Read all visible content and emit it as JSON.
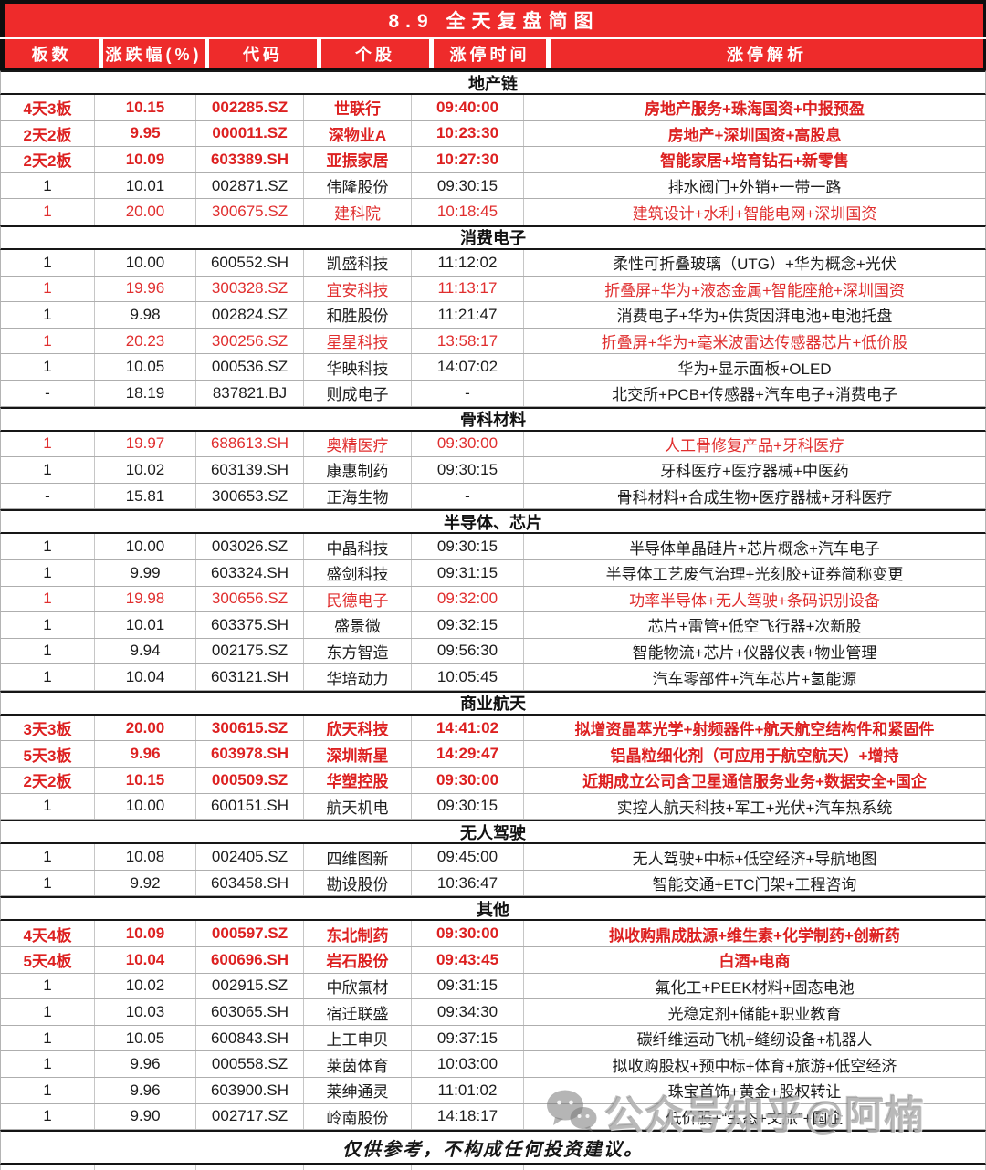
{
  "title": "8.9 全天复盘简图",
  "columns": [
    "板数",
    "涨跌幅(%)",
    "代码",
    "个股",
    "涨停时间",
    "涨停解析"
  ],
  "sections": [
    {
      "name": "地产链",
      "rows": [
        {
          "boards": "4天3板",
          "pct": "10.15",
          "code": "002285.SZ",
          "stock": "世联行",
          "time": "09:40:00",
          "analysis": "房地产服务+珠海国资+中报预盈",
          "style": "red-bold"
        },
        {
          "boards": "2天2板",
          "pct": "9.95",
          "code": "000011.SZ",
          "stock": "深物业A",
          "time": "10:23:30",
          "analysis": "房地产+深圳国资+高股息",
          "style": "red-bold"
        },
        {
          "boards": "2天2板",
          "pct": "10.09",
          "code": "603389.SH",
          "stock": "亚振家居",
          "time": "10:27:30",
          "analysis": "智能家居+培育钻石+新零售",
          "style": "red-bold"
        },
        {
          "boards": "1",
          "pct": "10.01",
          "code": "002871.SZ",
          "stock": "伟隆股份",
          "time": "09:30:15",
          "analysis": "排水阀门+外销+一带一路",
          "style": "black"
        },
        {
          "boards": "1",
          "pct": "20.00",
          "code": "300675.SZ",
          "stock": "建科院",
          "time": "10:18:45",
          "analysis": "建筑设计+水利+智能电网+深圳国资",
          "style": "red"
        }
      ]
    },
    {
      "name": "消费电子",
      "rows": [
        {
          "boards": "1",
          "pct": "10.00",
          "code": "600552.SH",
          "stock": "凯盛科技",
          "time": "11:12:02",
          "analysis": "柔性可折叠玻璃（UTG）+华为概念+光伏",
          "style": "black"
        },
        {
          "boards": "1",
          "pct": "19.96",
          "code": "300328.SZ",
          "stock": "宜安科技",
          "time": "11:13:17",
          "analysis": "折叠屏+华为+液态金属+智能座舱+深圳国资",
          "style": "red"
        },
        {
          "boards": "1",
          "pct": "9.98",
          "code": "002824.SZ",
          "stock": "和胜股份",
          "time": "11:21:47",
          "analysis": "消费电子+华为+供货因湃电池+电池托盘",
          "style": "black"
        },
        {
          "boards": "1",
          "pct": "20.23",
          "code": "300256.SZ",
          "stock": "星星科技",
          "time": "13:58:17",
          "analysis": "折叠屏+华为+毫米波雷达传感器芯片+低价股",
          "style": "red"
        },
        {
          "boards": "1",
          "pct": "10.05",
          "code": "000536.SZ",
          "stock": "华映科技",
          "time": "14:07:02",
          "analysis": "华为+显示面板+OLED",
          "style": "black"
        },
        {
          "boards": "-",
          "pct": "18.19",
          "code": "837821.BJ",
          "stock": "则成电子",
          "time": "-",
          "analysis": "北交所+PCB+传感器+汽车电子+消费电子",
          "style": "black"
        }
      ]
    },
    {
      "name": "骨科材料",
      "rows": [
        {
          "boards": "1",
          "pct": "19.97",
          "code": "688613.SH",
          "stock": "奥精医疗",
          "time": "09:30:00",
          "analysis": "人工骨修复产品+牙科医疗",
          "style": "red"
        },
        {
          "boards": "1",
          "pct": "10.02",
          "code": "603139.SH",
          "stock": "康惠制药",
          "time": "09:30:15",
          "analysis": "牙科医疗+医疗器械+中医药",
          "style": "black"
        },
        {
          "boards": "-",
          "pct": "15.81",
          "code": "300653.SZ",
          "stock": "正海生物",
          "time": "-",
          "analysis": "骨科材料+合成生物+医疗器械+牙科医疗",
          "style": "black"
        }
      ]
    },
    {
      "name": "半导体、芯片",
      "rows": [
        {
          "boards": "1",
          "pct": "10.00",
          "code": "003026.SZ",
          "stock": "中晶科技",
          "time": "09:30:15",
          "analysis": "半导体单晶硅片+芯片概念+汽车电子",
          "style": "black"
        },
        {
          "boards": "1",
          "pct": "9.99",
          "code": "603324.SH",
          "stock": "盛剑科技",
          "time": "09:31:15",
          "analysis": "半导体工艺废气治理+光刻胶+证券简称变更",
          "style": "black"
        },
        {
          "boards": "1",
          "pct": "19.98",
          "code": "300656.SZ",
          "stock": "民德电子",
          "time": "09:32:00",
          "analysis": "功率半导体+无人驾驶+条码识别设备",
          "style": "red"
        },
        {
          "boards": "1",
          "pct": "10.01",
          "code": "603375.SH",
          "stock": "盛景微",
          "time": "09:32:15",
          "analysis": "芯片+雷管+低空飞行器+次新股",
          "style": "black"
        },
        {
          "boards": "1",
          "pct": "9.94",
          "code": "002175.SZ",
          "stock": "东方智造",
          "time": "09:56:30",
          "analysis": "智能物流+芯片+仪器仪表+物业管理",
          "style": "black"
        },
        {
          "boards": "1",
          "pct": "10.04",
          "code": "603121.SH",
          "stock": "华培动力",
          "time": "10:05:45",
          "analysis": "汽车零部件+汽车芯片+氢能源",
          "style": "black"
        }
      ]
    },
    {
      "name": "商业航天",
      "rows": [
        {
          "boards": "3天3板",
          "pct": "20.00",
          "code": "300615.SZ",
          "stock": "欣天科技",
          "time": "14:41:02",
          "analysis": "拟增资晶萃光学+射频器件+航天航空结构件和紧固件",
          "style": "red-bold"
        },
        {
          "boards": "5天3板",
          "pct": "9.96",
          "code": "603978.SH",
          "stock": "深圳新星",
          "time": "14:29:47",
          "analysis": "铝晶粒细化剂（可应用于航空航天）+增持",
          "style": "red-bold"
        },
        {
          "boards": "2天2板",
          "pct": "10.15",
          "code": "000509.SZ",
          "stock": "华塑控股",
          "time": "09:30:00",
          "analysis": "近期成立公司含卫星通信服务业务+数据安全+国企",
          "style": "red-bold"
        },
        {
          "boards": "1",
          "pct": "10.00",
          "code": "600151.SH",
          "stock": "航天机电",
          "time": "09:30:15",
          "analysis": "实控人航天科技+军工+光伏+汽车热系统",
          "style": "black"
        }
      ]
    },
    {
      "name": "无人驾驶",
      "rows": [
        {
          "boards": "1",
          "pct": "10.08",
          "code": "002405.SZ",
          "stock": "四维图新",
          "time": "09:45:00",
          "analysis": "无人驾驶+中标+低空经济+导航地图",
          "style": "black"
        },
        {
          "boards": "1",
          "pct": "9.92",
          "code": "603458.SH",
          "stock": "勘设股份",
          "time": "10:36:47",
          "analysis": "智能交通+ETC门架+工程咨询",
          "style": "black"
        }
      ]
    },
    {
      "name": "其他",
      "rows": [
        {
          "boards": "4天4板",
          "pct": "10.09",
          "code": "000597.SZ",
          "stock": "东北制药",
          "time": "09:30:00",
          "analysis": "拟收购鼎成肽源+维生素+化学制药+创新药",
          "style": "red-bold"
        },
        {
          "boards": "5天4板",
          "pct": "10.04",
          "code": "600696.SH",
          "stock": "岩石股份",
          "time": "09:43:45",
          "analysis": "白酒+电商",
          "style": "red-bold"
        },
        {
          "boards": "1",
          "pct": "10.02",
          "code": "002915.SZ",
          "stock": "中欣氟材",
          "time": "09:31:15",
          "analysis": "氟化工+PEEK材料+固态电池",
          "style": "black"
        },
        {
          "boards": "1",
          "pct": "10.03",
          "code": "603065.SH",
          "stock": "宿迁联盛",
          "time": "09:34:30",
          "analysis": "光稳定剂+储能+职业教育",
          "style": "black"
        },
        {
          "boards": "1",
          "pct": "10.05",
          "code": "600843.SH",
          "stock": "上工申贝",
          "time": "09:37:15",
          "analysis": "碳纤维运动飞机+缝纫设备+机器人",
          "style": "black"
        },
        {
          "boards": "1",
          "pct": "9.96",
          "code": "000558.SZ",
          "stock": "莱茵体育",
          "time": "10:03:00",
          "analysis": "拟收购股权+预中标+体育+旅游+低空经济",
          "style": "black"
        },
        {
          "boards": "1",
          "pct": "9.96",
          "code": "603900.SH",
          "stock": "莱绅通灵",
          "time": "11:01:02",
          "analysis": "珠宝首饰+黄金+股权转让",
          "style": "black"
        },
        {
          "boards": "1",
          "pct": "9.90",
          "code": "002717.SZ",
          "stock": "岭南股份",
          "time": "14:18:17",
          "analysis": "低价股+“生态+文旅”+国企",
          "style": "black"
        }
      ]
    }
  ],
  "footer": "仅供参考，不构成任何投资建议。",
  "watermark": {
    "icon": "wechat-icon",
    "text": "公众号知乎@阿楠"
  },
  "colors": {
    "header_bg": "#ee2b2b",
    "header_text": "#ffffff",
    "red_text": "#e02e2e",
    "red_bold_text": "#dd2121",
    "black_text": "#1c1c1c",
    "section_border": "#161616"
  }
}
